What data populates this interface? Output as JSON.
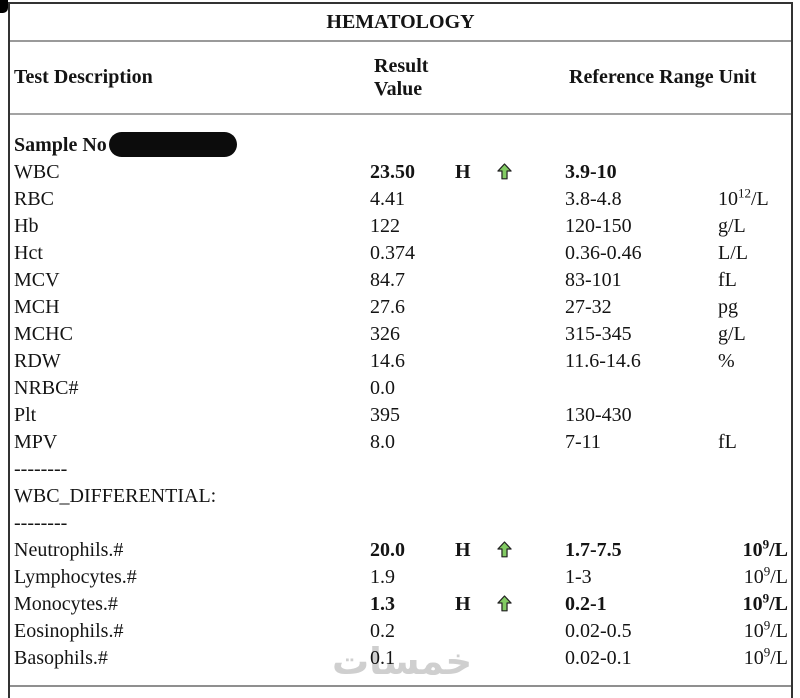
{
  "title": "HEMATOLOGY",
  "header": {
    "test": "Test Description",
    "result_line1": "Result",
    "result_line2": "Value",
    "reference": "Reference Range Unit"
  },
  "flag_high": "H",
  "rows": [
    {
      "kind": "sample",
      "name": "Sample No",
      "redacted": true
    },
    {
      "kind": "test",
      "name": "WBC",
      "value": "23.50",
      "flag": "H",
      "arrow": true,
      "range": "3.9-10",
      "unit": "",
      "bold": true,
      "ualign": "l"
    },
    {
      "kind": "test",
      "name": "RBC",
      "value": "4.41",
      "flag": "",
      "arrow": false,
      "range": "3.8-4.8",
      "unit": "10^12/L",
      "bold": false,
      "ualign": "l"
    },
    {
      "kind": "test",
      "name": "Hb",
      "value": "122",
      "flag": "",
      "arrow": false,
      "range": "120-150",
      "unit": "g/L",
      "bold": false,
      "ualign": "l"
    },
    {
      "kind": "test",
      "name": "Hct",
      "value": "0.374",
      "flag": "",
      "arrow": false,
      "range": "0.36-0.46",
      "unit": "L/L",
      "bold": false,
      "ualign": "l"
    },
    {
      "kind": "test",
      "name": "MCV",
      "value": "84.7",
      "flag": "",
      "arrow": false,
      "range": "83-101",
      "unit": "fL",
      "bold": false,
      "ualign": "l"
    },
    {
      "kind": "test",
      "name": "MCH",
      "value": "27.6",
      "flag": "",
      "arrow": false,
      "range": "27-32",
      "unit": "pg",
      "bold": false,
      "ualign": "l"
    },
    {
      "kind": "test",
      "name": "MCHC",
      "value": "326",
      "flag": "",
      "arrow": false,
      "range": "315-345",
      "unit": "g/L",
      "bold": false,
      "ualign": "l"
    },
    {
      "kind": "test",
      "name": "RDW",
      "value": "14.6",
      "flag": "",
      "arrow": false,
      "range": "11.6-14.6",
      "unit": "%",
      "bold": false,
      "ualign": "l"
    },
    {
      "kind": "test",
      "name": "NRBC#",
      "value": "0.0",
      "flag": "",
      "arrow": false,
      "range": "",
      "unit": "",
      "bold": false,
      "ualign": "l"
    },
    {
      "kind": "test",
      "name": "Plt",
      "value": "395",
      "flag": "",
      "arrow": false,
      "range": "130-430",
      "unit": "",
      "bold": false,
      "ualign": "l"
    },
    {
      "kind": "test",
      "name": "MPV",
      "value": "8.0",
      "flag": "",
      "arrow": false,
      "range": "7-11",
      "unit": "fL",
      "bold": false,
      "ualign": "l"
    },
    {
      "kind": "divider",
      "name": "--------"
    },
    {
      "kind": "section",
      "name": "WBC_DIFFERENTIAL:"
    },
    {
      "kind": "divider",
      "name": "--------"
    },
    {
      "kind": "test",
      "name": "Neutrophils.#",
      "value": "20.0",
      "flag": "H",
      "arrow": true,
      "range": "1.7-7.5",
      "unit": "10^9/L",
      "bold": true,
      "ualign": "r"
    },
    {
      "kind": "test",
      "name": "Lymphocytes.#",
      "value": "1.9",
      "flag": "",
      "arrow": false,
      "range": "1-3",
      "unit": "10^9/L",
      "bold": false,
      "ualign": "r"
    },
    {
      "kind": "test",
      "name": "Monocytes.#",
      "value": "1.3",
      "flag": "H",
      "arrow": true,
      "range": "0.2-1",
      "unit": "10^9/L",
      "bold": true,
      "ualign": "r"
    },
    {
      "kind": "test",
      "name": "Eosinophils.#",
      "value": "0.2",
      "flag": "",
      "arrow": false,
      "range": "0.02-0.5",
      "unit": "10^9/L",
      "bold": false,
      "ualign": "r"
    },
    {
      "kind": "test",
      "name": "Basophils.#",
      "value": "0.1",
      "flag": "",
      "arrow": false,
      "range": "0.02-0.1",
      "unit": "10^9/L",
      "bold": false,
      "ualign": "r"
    }
  ],
  "watermark": {
    "text": "خمسات",
    "color": "#cfcfcf"
  },
  "colors": {
    "arrow_fill": "#82cb63",
    "arrow_stroke": "#222222",
    "redaction": "#0c0c0c",
    "border_dark": "#333333",
    "border_light": "#9a9a9a"
  }
}
